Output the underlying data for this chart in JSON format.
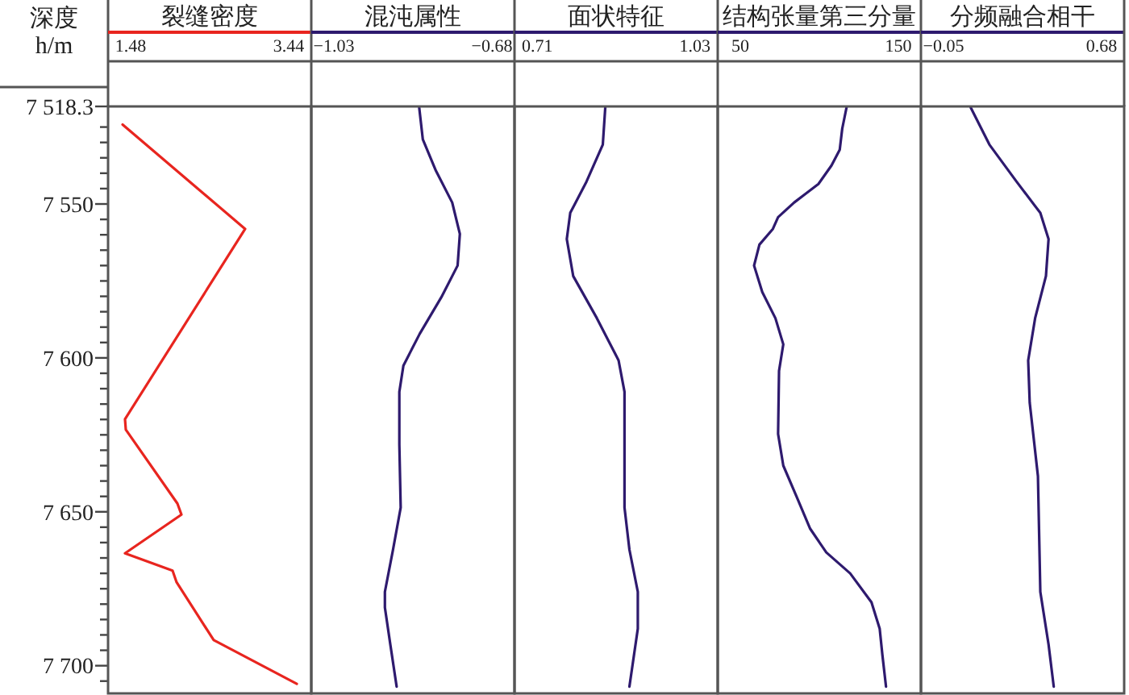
{
  "chart_data": [
    {
      "type": "line",
      "title": "裂缝密度",
      "ylabel": "深度\nh/m",
      "xlim": [
        1.2,
        3.72
      ],
      "xticks": [
        1.48,
        3.44
      ],
      "ylim": [
        7709,
        7518.3
      ],
      "yticks": [
        {
          "value": 7518.3,
          "label": "7 518.3"
        },
        {
          "value": 7525,
          "label": null
        },
        {
          "value": 7530,
          "label": null
        },
        {
          "value": 7535,
          "label": null
        },
        {
          "value": 7540,
          "label": null
        },
        {
          "value": 7545,
          "label": null
        },
        {
          "value": 7550,
          "label": "7 550"
        },
        {
          "value": 7555,
          "label": null
        },
        {
          "value": 7560,
          "label": null
        },
        {
          "value": 7565,
          "label": null
        },
        {
          "value": 7570,
          "label": null
        },
        {
          "value": 7575,
          "label": null
        },
        {
          "value": 7580,
          "label": null
        },
        {
          "value": 7585,
          "label": null
        },
        {
          "value": 7590,
          "label": null
        },
        {
          "value": 7595,
          "label": null
        },
        {
          "value": 7600,
          "label": "7 600"
        },
        {
          "value": 7605,
          "label": null
        },
        {
          "value": 7610,
          "label": null
        },
        {
          "value": 7615,
          "label": null
        },
        {
          "value": 7620,
          "label": null
        },
        {
          "value": 7625,
          "label": null
        },
        {
          "value": 7630,
          "label": null
        },
        {
          "value": 7635,
          "label": null
        },
        {
          "value": 7640,
          "label": null
        },
        {
          "value": 7645,
          "label": null
        },
        {
          "value": 7650,
          "label": "7 650"
        },
        {
          "value": 7655,
          "label": null
        },
        {
          "value": 7660,
          "label": null
        },
        {
          "value": 7665,
          "label": null
        },
        {
          "value": 7670,
          "label": null
        },
        {
          "value": 7675,
          "label": null
        },
        {
          "value": 7680,
          "label": null
        },
        {
          "value": 7685,
          "label": null
        },
        {
          "value": 7690,
          "label": null
        },
        {
          "value": 7695,
          "label": null
        },
        {
          "value": 7700,
          "label": "7 700"
        },
        {
          "value": 7705,
          "label": null
        }
      ],
      "series": [
        {
          "color": "#e8251f",
          "x": [
            1.38,
            2.9,
            1.41,
            1.42,
            2.06,
            2.11,
            1.41,
            2.0,
            2.05,
            2.51,
            3.54
          ],
          "values": [
            7524.2,
            7558.1,
            7619.9,
            7623.3,
            7647.3,
            7650.9,
            7663.5,
            7669.1,
            7672.9,
            7691.7,
            7705.9
          ]
        }
      ]
    },
    {
      "type": "line",
      "title": "混沌属性",
      "xlim": [
        -1.08,
        -0.63
      ],
      "xticks": [
        {
          "value": -1.03,
          "label": "−1.03"
        },
        {
          "value": -0.68,
          "label": "−0.68"
        }
      ],
      "ylim": [
        7709,
        7518.3
      ],
      "tick_labels": "x",
      "series": [
        {
          "color": "#2e1a6e",
          "x": [
            -0.841,
            -0.833,
            -0.804,
            -0.768,
            -0.751,
            -0.756,
            -0.792,
            -0.84,
            -0.876,
            -0.885,
            -0.885,
            -0.882,
            -0.899,
            -0.917,
            -0.917,
            -0.905,
            -0.891
          ],
          "values": [
            7518.7,
            7529.0,
            7539.2,
            7549.5,
            7559.7,
            7570.0,
            7580.3,
            7592.2,
            7602.5,
            7611.0,
            7628.1,
            7648.6,
            7662.3,
            7676.0,
            7681.1,
            7693.1,
            7706.8
          ]
        }
      ]
    },
    {
      "type": "line",
      "title": "面状特征",
      "xlim": [
        0.664,
        1.076
      ],
      "xticks": [
        0.71,
        1.03
      ],
      "ylim": [
        7709,
        7518.3
      ],
      "tick_labels": "x",
      "series": [
        {
          "color": "#2e1a6e",
          "x": [
            0.848,
            0.843,
            0.81,
            0.777,
            0.77,
            0.783,
            0.831,
            0.875,
            0.887,
            0.887,
            0.897,
            0.914,
            0.914,
            0.897
          ],
          "values": [
            7518.7,
            7530.7,
            7542.7,
            7552.9,
            7561.4,
            7573.4,
            7587.1,
            7600.8,
            7611.0,
            7648.6,
            7662.3,
            7676.0,
            7688.0,
            7706.8
          ]
        }
      ]
    },
    {
      "type": "line",
      "title": "结构张量第三分量",
      "xlim": [
        35.7,
        164.3
      ],
      "xticks": [
        50,
        150
      ],
      "ylim": [
        7709,
        7518.3
      ],
      "tick_labels": "x",
      "series": [
        {
          "color": "#2e1a6e",
          "x": [
            117.2,
            114.5,
            112.9,
            107.7,
            99.4,
            90.7,
            84.1,
            73.9,
            70.6,
            62.1,
            58.7,
            63.9,
            72.2,
            77.2,
            74.5,
            73.9,
            77.2,
            85.7,
            94.2,
            104.4,
            119.5,
            133.0,
            138.2,
            139.9,
            142.2
          ],
          "values": [
            7518.7,
            7525.5,
            7532.4,
            7537.5,
            7543.5,
            7546.9,
            7549.5,
            7554.3,
            7558.1,
            7563.2,
            7570.0,
            7578.6,
            7587.1,
            7595.6,
            7604.2,
            7624.7,
            7635.0,
            7645.2,
            7655.5,
            7663.2,
            7670.0,
            7679.4,
            7688.0,
            7696.5,
            7706.8
          ]
        }
      ]
    },
    {
      "type": "line",
      "title": "分频融合相干",
      "xlim": [
        -0.154,
        0.784
      ],
      "xticks": [
        {
          "value": -0.05,
          "label": "−0.05"
        },
        0.68
      ],
      "ylim": [
        7709,
        7518.3
      ],
      "tick_labels": "x",
      "series": [
        {
          "color": "#2e1a6e",
          "x": [
            0.076,
            0.162,
            0.287,
            0.397,
            0.435,
            0.423,
            0.373,
            0.341,
            0.348,
            0.386,
            0.391,
            0.397,
            0.435,
            0.459
          ],
          "values": [
            7518.7,
            7530.7,
            7542.7,
            7552.9,
            7561.4,
            7573.4,
            7587.1,
            7600.8,
            7614.5,
            7638.4,
            7655.5,
            7676.0,
            7693.1,
            7706.8
          ]
        }
      ]
    }
  ]
}
